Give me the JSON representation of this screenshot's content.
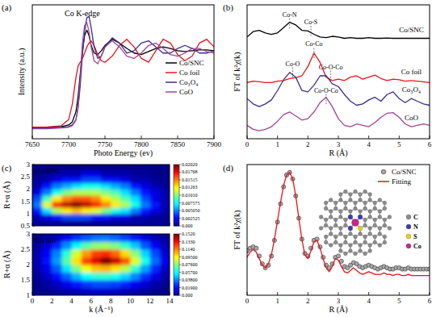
{
  "chart_data": [
    {
      "type": "line",
      "panel": "(a)",
      "title": "Co K-edge",
      "x_label": "Photo Energy (ev)",
      "y_label": "Intensity (a.u.)",
      "x": [
        7650,
        7670,
        7690,
        7700,
        7705,
        7710,
        7713,
        7716,
        7719,
        7722,
        7725,
        7728,
        7731,
        7735,
        7740,
        7745,
        7750,
        7760,
        7770,
        7780,
        7790,
        7800,
        7810,
        7820,
        7830,
        7840,
        7850,
        7860,
        7870,
        7880,
        7890,
        7900
      ],
      "series": [
        {
          "name": "Co/SNC",
          "color": "#000000",
          "values": [
            0.15,
            0.15,
            0.16,
            0.18,
            0.22,
            0.35,
            0.55,
            0.85,
            1.15,
            1.35,
            1.42,
            1.35,
            1.22,
            1.12,
            1.1,
            1.15,
            1.22,
            1.3,
            1.25,
            1.18,
            1.12,
            1.1,
            1.14,
            1.18,
            1.2,
            1.18,
            1.15,
            1.14,
            1.15,
            1.16,
            1.16,
            1.15
          ]
        },
        {
          "name": "Co foil",
          "color": "#e8141c",
          "values": [
            0.15,
            0.15,
            0.17,
            0.25,
            0.45,
            0.8,
            0.95,
            1.0,
            1.05,
            1.12,
            1.2,
            1.25,
            1.28,
            1.22,
            1.1,
            1.02,
            1.0,
            1.08,
            1.22,
            1.3,
            1.2,
            1.05,
            1.0,
            1.15,
            1.3,
            1.25,
            1.1,
            1.02,
            1.08,
            1.25,
            1.3,
            1.2
          ]
        },
        {
          "name": "Co₃O₄",
          "color": "#3a2e8e",
          "values": [
            0.14,
            0.14,
            0.15,
            0.16,
            0.18,
            0.25,
            0.4,
            0.7,
            1.1,
            1.4,
            1.58,
            1.6,
            1.45,
            1.2,
            1.05,
            1.08,
            1.2,
            1.32,
            1.25,
            1.12,
            1.15,
            1.25,
            1.28,
            1.2,
            1.12,
            1.12,
            1.18,
            1.22,
            1.18,
            1.12,
            1.12,
            1.15
          ]
        },
        {
          "name": "CoO",
          "color": "#a04497",
          "values": [
            0.13,
            0.13,
            0.14,
            0.15,
            0.17,
            0.24,
            0.42,
            0.8,
            1.25,
            1.48,
            1.52,
            1.4,
            1.2,
            1.02,
            0.98,
            1.08,
            1.2,
            1.28,
            1.2,
            1.08,
            1.05,
            1.12,
            1.22,
            1.25,
            1.18,
            1.1,
            1.08,
            1.12,
            1.18,
            1.18,
            1.14,
            1.12
          ]
        }
      ],
      "xlim": [
        7650,
        7900
      ],
      "xticks": [
        7650,
        7700,
        7750,
        7800,
        7850,
        7900
      ],
      "ylim": [
        0,
        1.75
      ],
      "tick_labels": "x",
      "legend": "right"
    },
    {
      "type": "line",
      "panel": "(b)",
      "x_label": "R (Å)",
      "y_label": "FT of k²χ(k)",
      "x": [
        0,
        0.2,
        0.4,
        0.6,
        0.8,
        1.0,
        1.2,
        1.4,
        1.6,
        1.8,
        2.0,
        2.2,
        2.4,
        2.6,
        2.8,
        3.0,
        3.2,
        3.4,
        3.6,
        3.8,
        4.0,
        4.2,
        4.4,
        4.6,
        4.8,
        5.0,
        5.2,
        5.4,
        5.6,
        5.8,
        6.0
      ],
      "series": [
        {
          "name": "Co/SNC",
          "color": "#000000",
          "values": [
            7.6,
            8.0,
            8.1,
            7.9,
            7.8,
            7.9,
            8.3,
            8.7,
            8.5,
            8.1,
            8.05,
            7.8,
            7.6,
            7.55,
            7.65,
            7.6,
            7.5,
            7.55,
            7.5,
            7.5,
            7.55,
            7.5,
            7.5,
            7.52,
            7.5,
            7.5,
            7.5,
            7.5,
            7.5,
            7.5,
            7.5
          ]
        },
        {
          "name": "Co foil",
          "color": "#e8141c",
          "values": [
            4.2,
            4.3,
            4.25,
            4.2,
            4.2,
            4.3,
            4.35,
            4.5,
            4.55,
            4.7,
            5.4,
            6.4,
            5.7,
            4.6,
            4.35,
            4.45,
            4.35,
            4.6,
            4.7,
            4.45,
            4.6,
            4.75,
            4.5,
            4.35,
            4.45,
            4.4,
            4.3,
            4.35,
            4.3,
            4.25,
            4.2
          ]
        },
        {
          "name": "Co₃O₄",
          "color": "#3a2e8e",
          "values": [
            3.0,
            2.6,
            2.4,
            2.6,
            2.9,
            3.6,
            4.4,
            4.95,
            4.6,
            3.6,
            3.5,
            4.0,
            4.7,
            4.7,
            4.1,
            3.9,
            3.3,
            2.8,
            2.5,
            2.6,
            2.9,
            3.1,
            2.8,
            3.3,
            3.5,
            3.0,
            2.7,
            3.0,
            2.8,
            2.6,
            2.5
          ]
        },
        {
          "name": "CoO",
          "color": "#a04497",
          "values": [
            1.0,
            0.7,
            0.6,
            0.7,
            0.9,
            1.3,
            1.8,
            2.0,
            1.7,
            1.4,
            1.5,
            2.0,
            2.7,
            3.1,
            2.4,
            1.5,
            1.0,
            0.9,
            1.1,
            1.0,
            0.9,
            1.2,
            1.6,
            1.9,
            1.95,
            1.6,
            1.1,
            0.9,
            1.0,
            1.1,
            1.0
          ]
        }
      ],
      "annotations": [
        {
          "text": "Co-N",
          "x": 1.4,
          "y": 9.1
        },
        {
          "text": "Co-S",
          "x": 2.1,
          "y": 8.55
        },
        {
          "text": "Co-Co",
          "x": 2.2,
          "y": 6.9
        },
        {
          "text": "Co-O",
          "x": 1.5,
          "y": 5.45
        },
        {
          "text": "Co-O-Co",
          "x": 2.75,
          "y": 5.2
        },
        {
          "text": "Co-O-Co",
          "x": 2.6,
          "y": 3.45
        }
      ],
      "xlim": [
        0,
        6
      ],
      "xticks": [
        0,
        1,
        2,
        3,
        4,
        5,
        6
      ],
      "ylim": [
        0,
        10
      ],
      "tick_labels": "x"
    },
    {
      "type": "heatmap",
      "panel": "(c)",
      "title": "Co/SNC",
      "y_label": "R+α (Å)",
      "x": [
        0.5,
        1.5,
        2.5,
        3.5,
        4.5,
        5.5,
        6.5,
        7.5,
        8.5,
        9.5,
        10.5,
        11.5,
        12.5,
        13.5
      ],
      "y": [
        0.625,
        0.875,
        1.125,
        1.375,
        1.625,
        1.875,
        2.125,
        2.375,
        2.625,
        2.875
      ],
      "cells": [
        [
          0.0005,
          0.0005,
          0.0005,
          0.0005,
          0.0005,
          0.0005,
          0.0005,
          0.0005,
          0.0005,
          0.0005,
          0.0005,
          0.0005,
          0.0005,
          0.0005
        ],
        [
          0.001,
          0.002,
          0.003,
          0.004,
          0.004,
          0.004,
          0.003,
          0.003,
          0.002,
          0.002,
          0.001,
          0.001,
          0.0005,
          0.0003
        ],
        [
          0.003,
          0.007,
          0.011,
          0.013,
          0.014,
          0.013,
          0.012,
          0.01,
          0.008,
          0.007,
          0.005,
          0.003,
          0.002,
          0.001
        ],
        [
          0.005,
          0.012,
          0.017,
          0.019,
          0.0202,
          0.019,
          0.017,
          0.015,
          0.013,
          0.011,
          0.008,
          0.005,
          0.003,
          0.001
        ],
        [
          0.004,
          0.009,
          0.013,
          0.015,
          0.016,
          0.016,
          0.015,
          0.013,
          0.011,
          0.009,
          0.007,
          0.004,
          0.002,
          0.001
        ],
        [
          0.002,
          0.005,
          0.008,
          0.01,
          0.011,
          0.011,
          0.011,
          0.01,
          0.009,
          0.007,
          0.005,
          0.003,
          0.002,
          0.001
        ],
        [
          0.001,
          0.003,
          0.005,
          0.006,
          0.007,
          0.008,
          0.008,
          0.007,
          0.006,
          0.005,
          0.003,
          0.002,
          0.001,
          0.0005
        ],
        [
          0.0005,
          0.001,
          0.002,
          0.003,
          0.003,
          0.004,
          0.004,
          0.003,
          0.003,
          0.002,
          0.001,
          0.001,
          0.0005,
          0.0002
        ],
        [
          0.0003,
          0.0005,
          0.001,
          0.001,
          0.001,
          0.002,
          0.002,
          0.001,
          0.001,
          0.001,
          0.0005,
          0.0005,
          0.0002,
          0.0001
        ],
        [
          0.0002,
          0.0002,
          0.0002,
          0.0002,
          0.0002,
          0.0002,
          0.0002,
          0.0002,
          0.0002,
          0.0002,
          0.0002,
          0.0002,
          0.0002,
          0.0002
        ]
      ],
      "xlim": [
        0,
        14
      ],
      "xticks": [
        0,
        2,
        4,
        6,
        8,
        10,
        12,
        14
      ],
      "ylim": [
        0.5,
        3
      ],
      "yticks": [
        0.5,
        1,
        1.5,
        2,
        2.5,
        3
      ],
      "tick_labels": "y",
      "colorbar_range": [
        0,
        0.0202
      ],
      "colorbar_ticks": [
        {
          "value": 0,
          "label": "0.000"
        },
        0.002525,
        {
          "value": 0.00505,
          "label": "0.005050"
        },
        0.007575,
        {
          "value": 0.0101,
          "label": "0.01010"
        },
        0.01263,
        0.01515,
        0.01768,
        {
          "value": 0.0202,
          "label": "0.02020"
        }
      ]
    },
    {
      "type": "heatmap",
      "title": "Co foil",
      "x_label": "k (Å⁻¹)",
      "y_label": "R+α (Å)",
      "x": [
        0.5,
        1.5,
        2.5,
        3.5,
        4.5,
        5.5,
        6.5,
        7.5,
        8.5,
        9.5,
        10.5,
        11.5,
        12.5,
        13.5
      ],
      "y": [
        1.125,
        1.375,
        1.625,
        1.875,
        2.125,
        2.375,
        2.625,
        2.875
      ],
      "cells": [
        [
          0.001,
          0.002,
          0.004,
          0.006,
          0.008,
          0.01,
          0.011,
          0.011,
          0.01,
          0.008,
          0.006,
          0.004,
          0.002,
          0.001
        ],
        [
          0.002,
          0.005,
          0.01,
          0.016,
          0.022,
          0.027,
          0.03,
          0.03,
          0.028,
          0.024,
          0.018,
          0.012,
          0.007,
          0.003
        ],
        [
          0.004,
          0.01,
          0.02,
          0.033,
          0.046,
          0.057,
          0.063,
          0.064,
          0.06,
          0.051,
          0.039,
          0.026,
          0.015,
          0.007
        ],
        [
          0.006,
          0.016,
          0.032,
          0.053,
          0.075,
          0.093,
          0.104,
          0.106,
          0.099,
          0.084,
          0.064,
          0.043,
          0.025,
          0.011
        ],
        [
          0.008,
          0.021,
          0.042,
          0.07,
          0.099,
          0.123,
          0.138,
          0.152,
          0.14,
          0.12,
          0.091,
          0.061,
          0.035,
          0.016
        ],
        [
          0.007,
          0.019,
          0.038,
          0.063,
          0.089,
          0.11,
          0.124,
          0.127,
          0.118,
          0.1,
          0.077,
          0.051,
          0.03,
          0.013
        ],
        [
          0.005,
          0.012,
          0.024,
          0.04,
          0.056,
          0.07,
          0.078,
          0.08,
          0.075,
          0.064,
          0.049,
          0.032,
          0.019,
          0.008
        ],
        [
          0.002,
          0.006,
          0.011,
          0.018,
          0.026,
          0.032,
          0.036,
          0.037,
          0.034,
          0.029,
          0.022,
          0.015,
          0.009,
          0.004
        ]
      ],
      "xlim": [
        0,
        14
      ],
      "xticks": [
        0,
        2,
        4,
        6,
        8,
        10,
        12,
        14
      ],
      "ylim": [
        1,
        3
      ],
      "yticks": [
        1,
        1.5,
        2,
        2.5,
        3
      ],
      "colorbar_range": [
        0,
        0.152
      ],
      "colorbar_ticks": [
        {
          "value": 0,
          "label": "0.000"
        },
        {
          "value": 0.019,
          "label": "0.01900"
        },
        {
          "value": 0.038,
          "label": "0.03800"
        },
        {
          "value": 0.057,
          "label": "0.05700"
        },
        {
          "value": 0.076,
          "label": "0.07600"
        },
        {
          "value": 0.095,
          "label": "0.09500"
        },
        {
          "value": 0.114,
          "label": "0.1140"
        },
        {
          "value": 0.133,
          "label": "0.1330"
        },
        {
          "value": 0.152,
          "label": "0.1520"
        }
      ]
    },
    {
      "type": "line",
      "panel": "(d)",
      "x_label": "R (Å)",
      "y_label": "FT of k²χ(k)",
      "x": [
        0,
        0.1,
        0.2,
        0.3,
        0.4,
        0.5,
        0.6,
        0.7,
        0.8,
        0.9,
        1.0,
        1.1,
        1.2,
        1.3,
        1.4,
        1.5,
        1.6,
        1.7,
        1.8,
        1.9,
        2.0,
        2.1,
        2.2,
        2.3,
        2.4,
        2.5,
        2.6,
        2.7,
        2.8,
        2.9,
        3.0,
        3.1,
        3.2,
        3.3,
        3.4,
        3.5,
        3.6,
        3.7,
        3.8,
        3.9,
        4.0,
        4.1,
        4.2,
        4.3,
        4.4,
        4.5,
        4.6,
        4.7,
        4.8,
        4.9,
        5.0,
        5.1,
        5.2,
        5.3,
        5.4,
        5.5,
        5.6,
        5.7,
        5.8,
        5.9,
        6.0
      ],
      "series": [
        {
          "name": "Co/SNC",
          "type": "scatter",
          "marker": "circle",
          "color": "#a8a8a8",
          "values": [
            3.4,
            3.6,
            3.7,
            3.6,
            3.0,
            2.4,
            2.1,
            2.3,
            3.0,
            4.2,
            5.6,
            7.0,
            8.3,
            9.2,
            9.4,
            8.9,
            7.6,
            5.9,
            4.3,
            3.2,
            3.0,
            3.6,
            4.2,
            4.3,
            3.7,
            2.9,
            2.3,
            2.1,
            2.4,
            2.9,
            3.0,
            2.6,
            2.2,
            2.1,
            2.3,
            2.5,
            2.4,
            2.2,
            2.1,
            2.2,
            2.3,
            2.2,
            2.1,
            2.0,
            2.1,
            2.2,
            2.1,
            2.0,
            2.0,
            2.1,
            2.1,
            2.0,
            2.0,
            2.1,
            2.0,
            2.0,
            2.0,
            2.0,
            2.0,
            2.0,
            2.0
          ]
        },
        {
          "name": "Fitting",
          "type": "line",
          "line_style": "solid",
          "color": "#e8141c",
          "values": [
            2.9,
            3.3,
            3.5,
            3.3,
            2.8,
            2.3,
            2.1,
            2.4,
            3.1,
            4.3,
            5.7,
            7.1,
            8.4,
            9.2,
            9.4,
            8.9,
            7.6,
            5.9,
            4.3,
            3.1,
            2.8,
            3.4,
            4.1,
            4.2,
            3.6,
            2.8,
            2.1,
            1.8,
            2.2,
            2.8,
            2.7,
            2.2,
            1.8,
            1.7,
            1.9,
            2.1,
            1.9,
            1.7,
            1.6,
            1.7,
            1.8,
            1.7,
            1.6,
            1.6,
            1.6,
            1.7,
            1.6,
            1.6,
            1.5,
            1.6,
            1.6,
            1.5,
            1.5,
            1.6,
            1.5,
            1.5,
            1.5,
            1.5,
            1.5,
            1.5,
            1.5
          ]
        }
      ],
      "legend": "upper right",
      "inset_legend": [
        {
          "label": "C",
          "color": "#8c8c8c"
        },
        {
          "label": "N",
          "color": "#3b3bb0"
        },
        {
          "label": "S",
          "color": "#e6cf1e"
        },
        {
          "label": "Co",
          "color": "#d0208c"
        }
      ],
      "xlim": [
        0,
        6
      ],
      "xticks": [
        0,
        1,
        2,
        3,
        4,
        5,
        6
      ],
      "ylim": [
        0,
        10
      ],
      "tick_labels": "x"
    }
  ]
}
